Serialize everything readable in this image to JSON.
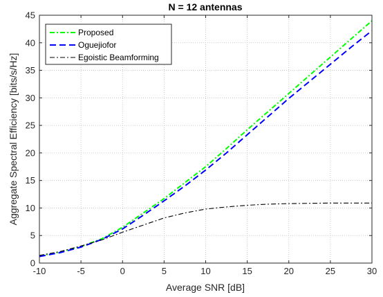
{
  "chart_data": {
    "type": "line",
    "title": "N = 12 antennas",
    "xlabel": "Average SNR [dB]",
    "ylabel": "Aggregate Spectral Efficiency [bits/s/Hz]",
    "xlim": [
      -10,
      30
    ],
    "ylim": [
      0,
      45
    ],
    "xticks": [
      -10,
      -5,
      0,
      5,
      10,
      15,
      20,
      25,
      30
    ],
    "yticks": [
      0,
      5,
      10,
      15,
      20,
      25,
      30,
      35,
      40,
      45
    ],
    "grid": true,
    "legend_position": "top-left",
    "x": [
      -10,
      -7.5,
      -5,
      -2.5,
      0,
      2.5,
      5,
      7.5,
      10,
      12.5,
      15,
      17.5,
      20,
      22.5,
      25,
      27.5,
      30
    ],
    "series": [
      {
        "name": "Proposed",
        "color": "#00ff00",
        "dash": "dash-dot",
        "values": [
          1.3,
          2.0,
          3.0,
          4.4,
          6.5,
          9.1,
          11.7,
          14.6,
          17.5,
          20.8,
          24.2,
          27.5,
          30.8,
          34.1,
          37.4,
          40.7,
          44.0
        ]
      },
      {
        "name": "Oguejiofor",
        "color": "#0000ff",
        "dash": "dashed",
        "values": [
          1.2,
          1.9,
          2.9,
          4.3,
          6.2,
          8.7,
          11.3,
          14.0,
          16.9,
          20.0,
          23.3,
          26.6,
          29.9,
          33.0,
          36.1,
          39.2,
          42.2
        ]
      },
      {
        "name": "Egoistic Beamforming",
        "color": "#000000",
        "dash": "dash-dot",
        "values": [
          1.4,
          2.1,
          3.1,
          4.2,
          5.6,
          6.9,
          8.2,
          9.1,
          9.8,
          10.2,
          10.5,
          10.7,
          10.8,
          10.85,
          10.9,
          10.9,
          10.9
        ]
      }
    ]
  }
}
